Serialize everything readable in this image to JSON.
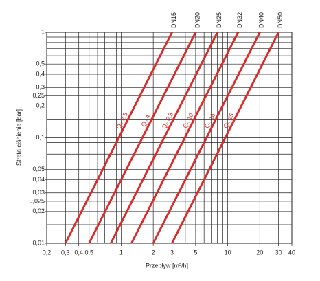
{
  "chart_data": {
    "type": "line",
    "x_label": "Przepływ  [m³/h]",
    "y_label": "Strata ciśnienia [bar]",
    "log_x": true,
    "log_y": true,
    "grid": true,
    "xlim": [
      0.2,
      40
    ],
    "ylim": [
      0.01,
      1
    ],
    "xticks": [
      {
        "value": 0.2,
        "label": "0,2"
      },
      {
        "value": 0.3,
        "label": "0,3"
      },
      {
        "value": 0.4,
        "label": "0,4"
      },
      {
        "value": 0.5,
        "label": "0,5"
      },
      1,
      2,
      3,
      5,
      10,
      20,
      30,
      40
    ],
    "xminor": [
      0.6,
      0.7,
      0.8,
      0.9,
      4,
      6,
      7,
      8,
      9
    ],
    "yticks": [
      1,
      {
        "value": 0.5,
        "label": "0,5"
      },
      {
        "value": 0.4,
        "label": "0,4"
      },
      {
        "value": 0.3,
        "label": "0,3"
      },
      {
        "value": 0.25,
        "label": "0,25"
      },
      {
        "value": 0.2,
        "label": "0,2"
      },
      {
        "value": 0.1,
        "label": "0,1"
      },
      {
        "value": 0.05,
        "label": "0,05"
      },
      {
        "value": 0.04,
        "label": "0,04"
      },
      {
        "value": 0.03,
        "label": "0,03"
      },
      {
        "value": 0.025,
        "label": "0,025"
      },
      {
        "value": 0.02,
        "label": "0,02"
      },
      {
        "value": 0.01,
        "label": "0,01"
      }
    ],
    "yminor": [
      0.9,
      0.8,
      0.7,
      0.6,
      0.15,
      0.09,
      0.08,
      0.07,
      0.06,
      0.015
    ],
    "series": [
      {
        "name": "Qₙ 2,5",
        "dn": "DN15",
        "color": "#d92b2b",
        "x": [
          0.3,
          3
        ],
        "values": [
          0.01,
          1
        ]
      },
      {
        "name": "Qₙ 4",
        "dn": "DN20",
        "color": "#d92b2b",
        "x": [
          0.5,
          5
        ],
        "values": [
          0.01,
          1
        ]
      },
      {
        "name": "Qₙ 6,3",
        "dn": "DN25",
        "color": "#d92b2b",
        "x": [
          0.8,
          8
        ],
        "values": [
          0.01,
          1
        ]
      },
      {
        "name": "Qₙ 10",
        "dn": "DN32",
        "color": "#d92b2b",
        "x": [
          1.25,
          12.5
        ],
        "values": [
          0.01,
          1
        ]
      },
      {
        "name": "Qₙ 16",
        "dn": "DN40",
        "color": "#d92b2b",
        "x": [
          2,
          20
        ],
        "values": [
          0.01,
          1
        ]
      },
      {
        "name": "Qₙ 25",
        "dn": "DN50",
        "color": "#d92b2b",
        "x": [
          3,
          30
        ],
        "values": [
          0.01,
          1
        ]
      }
    ]
  }
}
